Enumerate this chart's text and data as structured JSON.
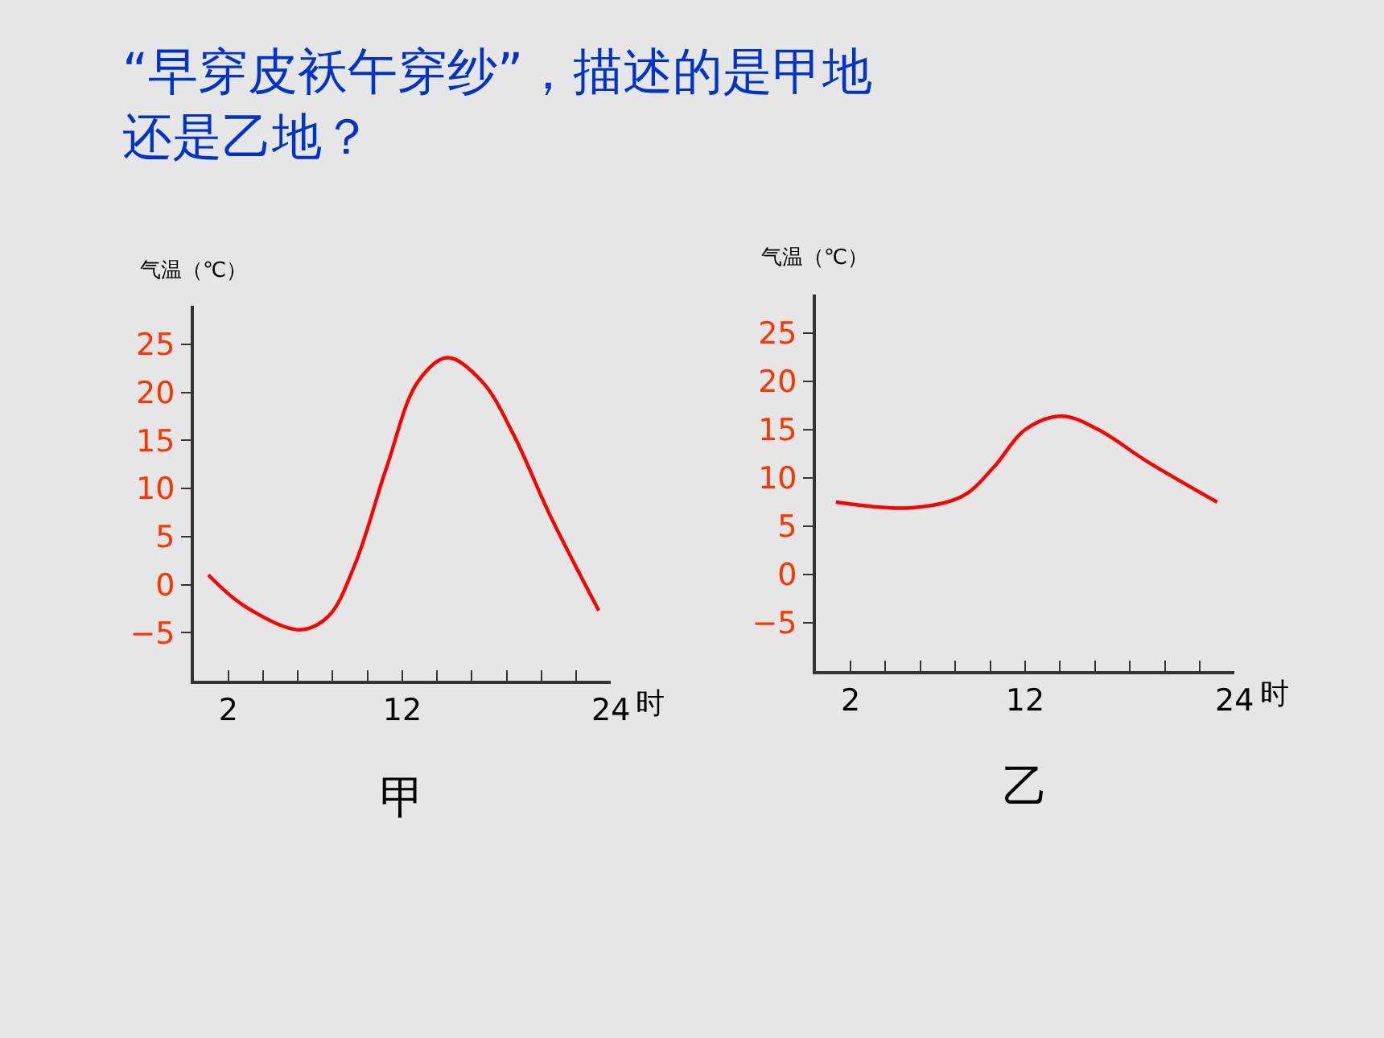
{
  "chart_data": [
    {
      "type": "line",
      "title": "“早穿皮袄午穿纱”，描述的是甲地还是乙地？",
      "xlabel": "时",
      "ylabel": "气温（℃）",
      "annotations": [
        "甲"
      ],
      "x": [
        0.85,
        2.9,
        6.1,
        7.75,
        9.3,
        11.1,
        12.9,
        14.6,
        16.6,
        18.4,
        20.5,
        23.3
      ],
      "series": [
        {
          "color": "#ff0000",
          "values": [
            1.0,
            -2.2,
            -4.7,
            -3.3,
            2.2,
            12.2,
            21.1,
            23.6,
            21.1,
            15.6,
            7.2,
            -2.7
          ]
        }
      ],
      "xlim": [
        0,
        24
      ],
      "ylim": [
        -10,
        29
      ],
      "xticks": [
        2,
        {
          "value": 4,
          "label": null
        },
        {
          "value": 6,
          "label": null
        },
        {
          "value": 8,
          "label": null
        },
        {
          "value": 10,
          "label": null
        },
        12,
        {
          "value": 14,
          "label": null
        },
        {
          "value": 16,
          "label": null
        },
        {
          "value": 18,
          "label": null
        },
        {
          "value": 20,
          "label": null
        },
        {
          "value": 22,
          "label": null
        },
        24
      ],
      "yticks": [
        -5,
        0,
        5,
        10,
        15,
        20,
        25
      ],
      "grid": false,
      "marker": "none",
      "line_style": "solid"
    },
    {
      "type": "line",
      "xlabel": "时",
      "ylabel": "气温（℃）",
      "annotations": [
        "乙"
      ],
      "x": [
        1.16,
        5.4,
        8.4,
        10.2,
        12.0,
        14.1,
        16.2,
        19.0,
        23.0
      ],
      "series": [
        {
          "color": "#ff0000",
          "values": [
            7.5,
            6.9,
            8.1,
            11.1,
            15.0,
            16.4,
            15.0,
            11.7,
            7.5
          ]
        }
      ],
      "xlim": [
        0,
        24
      ],
      "ylim": [
        -10,
        29
      ],
      "xticks": [
        2,
        {
          "value": 4,
          "label": null
        },
        {
          "value": 6,
          "label": null
        },
        {
          "value": 8,
          "label": null
        },
        {
          "value": 10,
          "label": null
        },
        12,
        {
          "value": 14,
          "label": null
        },
        {
          "value": 16,
          "label": null
        },
        {
          "value": 18,
          "label": null
        },
        {
          "value": 20,
          "label": null
        },
        {
          "value": 22,
          "label": null
        },
        24
      ],
      "yticks": [
        -5,
        0,
        5,
        10,
        15,
        20,
        25
      ],
      "grid": false,
      "marker": "none",
      "line_style": "solid"
    }
  ]
}
